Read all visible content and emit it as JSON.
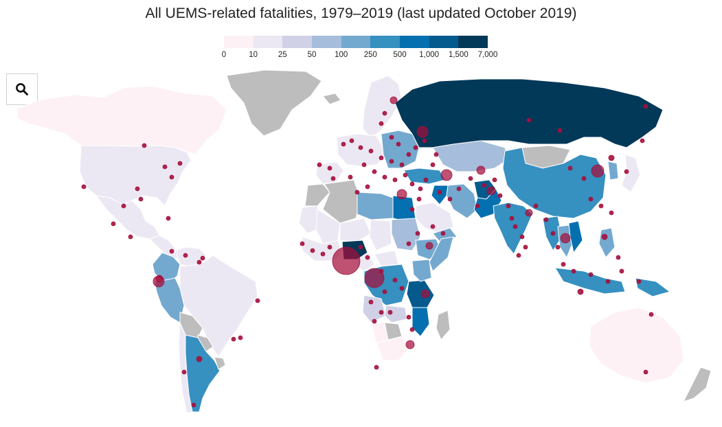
{
  "title": "All UEMS-related fatalities, 1979–2019 (last updated October 2019)",
  "search_icon": "magnifier-icon",
  "legend": {
    "labels": [
      "0",
      "10",
      "25",
      "50",
      "100",
      "250",
      "500",
      "1,000",
      "1,500",
      "7,000"
    ],
    "colors": [
      "#fdf1f6",
      "#ece8f3",
      "#d0d1e6",
      "#a6bddb",
      "#74a9cf",
      "#3690c0",
      "#0570b0",
      "#045a8d",
      "#023858"
    ]
  },
  "colors": {
    "no_data": "#bdbdbd",
    "ocean": "#ffffff",
    "marker": "#a50f3c"
  },
  "regions": [
    {
      "name": "Greenland",
      "bin": -1
    },
    {
      "name": "Canada",
      "bin": 0
    },
    {
      "name": "USA",
      "bin": 1
    },
    {
      "name": "Mexico",
      "bin": 1
    },
    {
      "name": "Central America",
      "bin": 1
    },
    {
      "name": "Colombia",
      "bin": 4
    },
    {
      "name": "Venezuela",
      "bin": 1
    },
    {
      "name": "Brazil",
      "bin": 1
    },
    {
      "name": "Peru",
      "bin": 4
    },
    {
      "name": "Bolivia",
      "bin": -1
    },
    {
      "name": "Paraguay",
      "bin": -1
    },
    {
      "name": "Argentina",
      "bin": 5
    },
    {
      "name": "Chile",
      "bin": 1
    },
    {
      "name": "Uruguay",
      "bin": -1
    },
    {
      "name": "Iceland",
      "bin": -1
    },
    {
      "name": "Scandinavia",
      "bin": 1
    },
    {
      "name": "Western Europe",
      "bin": 1
    },
    {
      "name": "Eastern Europe",
      "bin": 4
    },
    {
      "name": "Spain",
      "bin": 1
    },
    {
      "name": "Russia",
      "bin": 8
    },
    {
      "name": "Kazakhstan",
      "bin": 3
    },
    {
      "name": "Mongolia",
      "bin": -1
    },
    {
      "name": "China",
      "bin": 5
    },
    {
      "name": "Turkey",
      "bin": 5
    },
    {
      "name": "Iran",
      "bin": 4
    },
    {
      "name": "Iraq",
      "bin": 6
    },
    {
      "name": "Afghanistan",
      "bin": 7
    },
    {
      "name": "Pakistan",
      "bin": 6
    },
    {
      "name": "India",
      "bin": 5
    },
    {
      "name": "Saudi Arabia",
      "bin": 1
    },
    {
      "name": "Yemen",
      "bin": 4
    },
    {
      "name": "Morocco",
      "bin": -1
    },
    {
      "name": "Algeria",
      "bin": -1
    },
    {
      "name": "Libya",
      "bin": 4
    },
    {
      "name": "Egypt",
      "bin": 6
    },
    {
      "name": "Mauritania",
      "bin": 1
    },
    {
      "name": "Mali",
      "bin": 1
    },
    {
      "name": "Niger",
      "bin": 1
    },
    {
      "name": "Chad",
      "bin": 1
    },
    {
      "name": "Sudan",
      "bin": 3
    },
    {
      "name": "Ethiopia",
      "bin": 4
    },
    {
      "name": "Somalia",
      "bin": 4
    },
    {
      "name": "West Africa",
      "bin": 1
    },
    {
      "name": "Nigeria",
      "bin": 8
    },
    {
      "name": "Cameroon",
      "bin": 1
    },
    {
      "name": "Central African Republic",
      "bin": 1
    },
    {
      "name": "DR Congo",
      "bin": 5
    },
    {
      "name": "Tanzania",
      "bin": 7
    },
    {
      "name": "Kenya",
      "bin": 4
    },
    {
      "name": "Angola",
      "bin": 2
    },
    {
      "name": "Zambia",
      "bin": 2
    },
    {
      "name": "Mozambique",
      "bin": 6
    },
    {
      "name": "Namibia",
      "bin": 0
    },
    {
      "name": "Botswana",
      "bin": -1
    },
    {
      "name": "South Africa",
      "bin": 0
    },
    {
      "name": "Madagascar",
      "bin": -1
    },
    {
      "name": "Myanmar",
      "bin": 5
    },
    {
      "name": "Thailand",
      "bin": 4
    },
    {
      "name": "Vietnam",
      "bin": 6
    },
    {
      "name": "Indonesia",
      "bin": 5
    },
    {
      "name": "Philippines",
      "bin": 4
    },
    {
      "name": "Papua New Guinea",
      "bin": 5
    },
    {
      "name": "Japan",
      "bin": 1
    },
    {
      "name": "Korea",
      "bin": 4
    },
    {
      "name": "Australia",
      "bin": 0
    },
    {
      "name": "New Zealand",
      "bin": -1
    }
  ]
}
